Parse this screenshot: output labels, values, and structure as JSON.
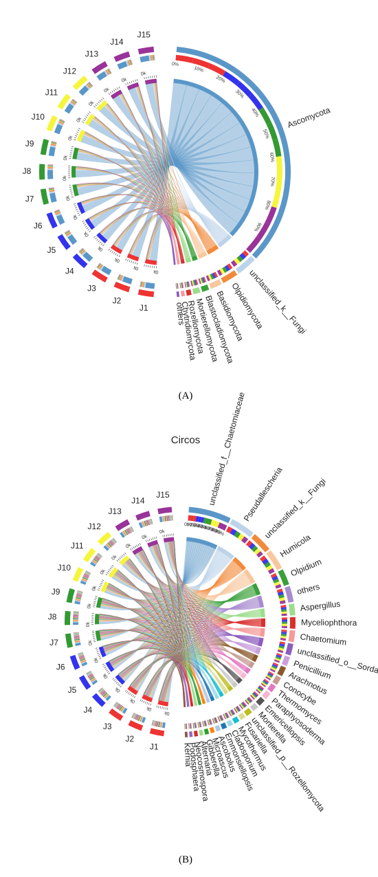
{
  "panel_a": {
    "caption": "(A)",
    "samples": [
      {
        "name": "J1",
        "color": "#ee3333"
      },
      {
        "name": "J2",
        "color": "#ee3333"
      },
      {
        "name": "J3",
        "color": "#ee3333"
      },
      {
        "name": "J4",
        "color": "#3333ee"
      },
      {
        "name": "J5",
        "color": "#3333ee"
      },
      {
        "name": "J6",
        "color": "#3333ee"
      },
      {
        "name": "J7",
        "color": "#339933"
      },
      {
        "name": "J8",
        "color": "#339933"
      },
      {
        "name": "J9",
        "color": "#339933"
      },
      {
        "name": "J10",
        "color": "#f5f53c"
      },
      {
        "name": "J11",
        "color": "#f5f53c"
      },
      {
        "name": "J12",
        "color": "#f5f53c"
      },
      {
        "name": "J13",
        "color": "#993399"
      },
      {
        "name": "J14",
        "color": "#993399"
      },
      {
        "name": "J15",
        "color": "#993399"
      }
    ],
    "taxa": [
      {
        "name": "Ascomycota",
        "color": "#5a97c8"
      },
      {
        "name": "unclassified_k__Fungi",
        "color": "#bcd3ea"
      },
      {
        "name": "Olpidiomycota",
        "color": "#f28a3c"
      },
      {
        "name": "Basidiomycota",
        "color": "#f8c79d"
      },
      {
        "name": "Blastocladiomycota",
        "color": "#3aa03a"
      },
      {
        "name": "Mortierellomycota",
        "color": "#9ddc8c"
      },
      {
        "name": "Rozellomycota",
        "color": "#d9302c"
      },
      {
        "name": "Chytridiomycota",
        "color": "#f59a99"
      },
      {
        "name": "others",
        "color": "#8c5dbd"
      }
    ],
    "percent_ticks": [
      "0%",
      "10%",
      "20%",
      "30%",
      "40%",
      "50%",
      "60%",
      "70%",
      "80%",
      "90%"
    ],
    "axis_tick": "0k"
  },
  "panel_b": {
    "title": "Circos",
    "caption": "(B)",
    "taxa": [
      {
        "name": "unclassified_f__Chaetomiaceae",
        "color": "#5a97c8"
      },
      {
        "name": "Pseudallescheria",
        "color": "#bcd3ea"
      },
      {
        "name": "unclassified_k__Fungi",
        "color": "#f28a3c"
      },
      {
        "name": "Humicola",
        "color": "#f8c79d"
      },
      {
        "name": "Olpidium",
        "color": "#3aa03a"
      },
      {
        "name": "others",
        "color": "#a98bd0"
      },
      {
        "name": "Aspergillus",
        "color": "#9ddc8c"
      },
      {
        "name": "Myceliophthora",
        "color": "#d9302c"
      },
      {
        "name": "Chaetomium",
        "color": "#f59a99"
      },
      {
        "name": "unclassified_o__Sordariales",
        "color": "#8c5dbd"
      },
      {
        "name": "Penicillium",
        "color": "#c9a0dc"
      },
      {
        "name": "Arachnotus",
        "color": "#8b5a2b"
      },
      {
        "name": "Conocybe",
        "color": "#c49c94"
      },
      {
        "name": "Thermomyces",
        "color": "#e377c2"
      },
      {
        "name": "Paraphyosoderma",
        "color": "#f7b6d2"
      },
      {
        "name": "Emericellopsis",
        "color": "#555555"
      },
      {
        "name": "Mortierella",
        "color": "#c7c7c7"
      },
      {
        "name": "unclassified_p__Rozellomycota",
        "color": "#bcbd22"
      },
      {
        "name": "Fusariella",
        "color": "#dbdb8d"
      },
      {
        "name": "Mycothermus",
        "color": "#17becf"
      },
      {
        "name": "Cladosporium",
        "color": "#9edae5"
      },
      {
        "name": "Emmonsiellopsis",
        "color": "#1f77b4"
      },
      {
        "name": "Ascobolus",
        "color": "#aec7e8"
      },
      {
        "name": "Microascus",
        "color": "#ff7f0e"
      },
      {
        "name": "Gibberella",
        "color": "#2ca02c"
      },
      {
        "name": "Alternaria",
        "color": "#98df8a"
      },
      {
        "name": "Neocosmospora",
        "color": "#d62728"
      },
      {
        "name": "Podosphaera",
        "color": "#9467bd"
      },
      {
        "name": "Kernia",
        "color": "#8c564b"
      }
    ],
    "percent_ticks": [
      "0%",
      "10%",
      "20%",
      "30%",
      "40%",
      "50%",
      "60%",
      "70%",
      "80%",
      "90%"
    ],
    "axis_tick": "0k"
  }
}
